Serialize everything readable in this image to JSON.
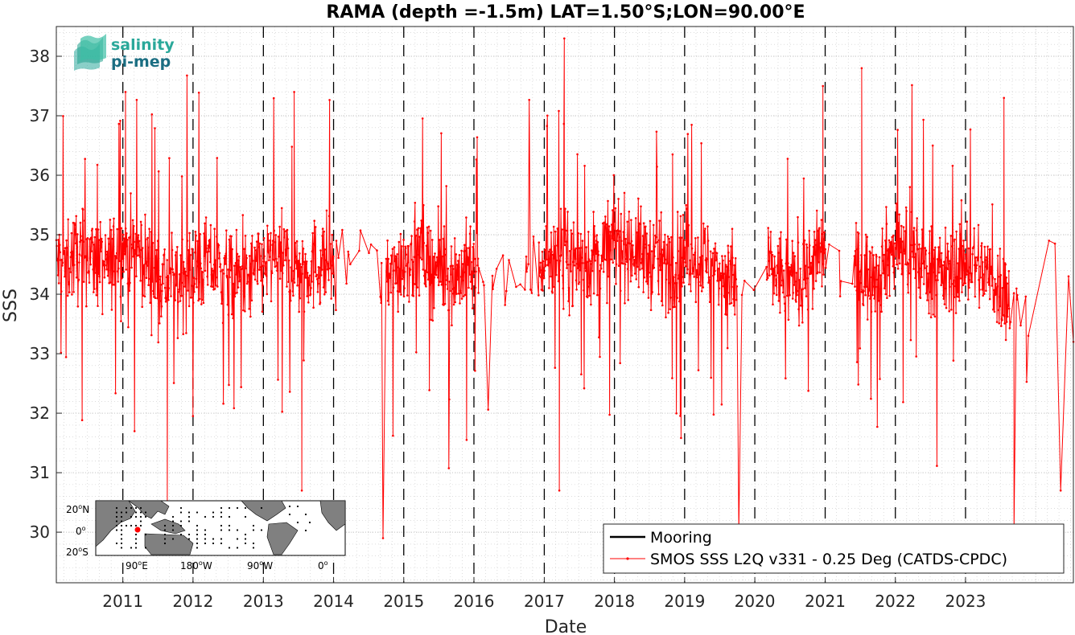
{
  "chart_data": {
    "type": "line",
    "title": "RAMA (depth =-1.5m) LAT=1.50°S;LON=90.00°E",
    "xlabel": "Date",
    "ylabel": "SSS",
    "xlim": [
      "2010-01-20",
      "2024-07-15"
    ],
    "ylim": [
      29.15,
      38.5
    ],
    "x_ticks": [
      "2011",
      "2012",
      "2013",
      "2014",
      "2015",
      "2016",
      "2017",
      "2018",
      "2019",
      "2020",
      "2021",
      "2022",
      "2023"
    ],
    "y_ticks": [
      30,
      31,
      32,
      33,
      34,
      35,
      36,
      37,
      38
    ],
    "grid": true,
    "year_boundaries_dashed": true,
    "legend_position": "bottom-right",
    "series": [
      {
        "name": "Mooring",
        "color": "#000000",
        "values": []
      },
      {
        "name": "SMOS SSS L2Q v331 - 0.25 Deg (CATDS-CPDC)",
        "color": "#ff0000",
        "marker": "dot",
        "envelope_note": "",
        "monthly_mean": [
          [
            "2010-01",
            34.5
          ],
          [
            "2010-04",
            34.6
          ],
          [
            "2010-07",
            34.7
          ],
          [
            "2010-10",
            34.4
          ],
          [
            "2011-01",
            34.8
          ],
          [
            "2011-04",
            34.7
          ],
          [
            "2011-07",
            34.3
          ],
          [
            "2011-10",
            34.2
          ],
          [
            "2012-01",
            34.4
          ],
          [
            "2012-04",
            34.5
          ],
          [
            "2012-07",
            34.3
          ],
          [
            "2012-10",
            34.2
          ],
          [
            "2013-01",
            34.5
          ],
          [
            "2013-04",
            34.6
          ],
          [
            "2013-07",
            34.4
          ],
          [
            "2013-10",
            34.5
          ],
          [
            "2014-01",
            34.6
          ],
          [
            "2014-04",
            34.5
          ],
          [
            "2014-07",
            34.3
          ],
          [
            "2014-10",
            34.2
          ],
          [
            "2015-01",
            34.6
          ],
          [
            "2015-04",
            34.7
          ],
          [
            "2015-07",
            34.4
          ],
          [
            "2015-10",
            34.3
          ],
          [
            "2016-01",
            34.5
          ],
          [
            "2016-04",
            34.4
          ],
          [
            "2016-07",
            34.2
          ],
          [
            "2016-10",
            34.3
          ],
          [
            "2017-01",
            34.6
          ],
          [
            "2017-04",
            34.7
          ],
          [
            "2017-07",
            34.5
          ],
          [
            "2017-10",
            34.6
          ],
          [
            "2018-01",
            34.9
          ],
          [
            "2018-04",
            34.8
          ],
          [
            "2018-07",
            34.6
          ],
          [
            "2018-10",
            34.5
          ],
          [
            "2019-01",
            34.7
          ],
          [
            "2019-04",
            34.6
          ],
          [
            "2019-07",
            34.4
          ],
          [
            "2019-10",
            34.2
          ],
          [
            "2020-01",
            34.5
          ],
          [
            "2020-04",
            34.4
          ],
          [
            "2020-07",
            34.2
          ],
          [
            "2020-10",
            34.4
          ],
          [
            "2021-01",
            34.7
          ],
          [
            "2021-04",
            34.6
          ],
          [
            "2021-07",
            34.3
          ],
          [
            "2021-10",
            34.4
          ],
          [
            "2022-01",
            34.8
          ],
          [
            "2022-04",
            34.7
          ],
          [
            "2022-07",
            34.4
          ],
          [
            "2022-10",
            34.3
          ],
          [
            "2023-01",
            34.6
          ],
          [
            "2023-04",
            34.4
          ],
          [
            "2023-07",
            34.1
          ],
          [
            "2023-10",
            33.8
          ],
          [
            "2024-01",
            34.2
          ],
          [
            "2024-04",
            34.7
          ],
          [
            "2024-07",
            34.2
          ]
        ],
        "notable_points": [
          [
            "2011-01-15",
            37.4
          ],
          [
            "2011-08-20",
            30.4
          ],
          [
            "2013-06-10",
            37.4
          ],
          [
            "2013-07-20",
            30.7
          ],
          [
            "2014-09-15",
            29.9
          ],
          [
            "2017-04-15",
            38.3
          ],
          [
            "2017-03-20",
            30.7
          ],
          [
            "2019-10-10",
            30.0
          ],
          [
            "2020-12-20",
            37.5
          ],
          [
            "2021-07-10",
            37.8
          ],
          [
            "2023-07-20",
            37.3
          ],
          [
            "2023-09-10",
            30.0
          ],
          [
            "2024-05-10",
            30.7
          ],
          [
            "2024-07-15",
            33.2
          ]
        ]
      }
    ]
  },
  "logo": {
    "line1": "salinity",
    "line2": "pi-mep",
    "color1": "#2aa89a",
    "color2": "#1b6e82"
  },
  "inset_map": {
    "lat_labels": [
      "20",
      "0",
      "20"
    ],
    "lat_suffix": [
      "N",
      "",
      "S"
    ],
    "lon_labels": [
      "90",
      "180",
      "90",
      "0"
    ],
    "lon_suffix": [
      "E",
      "W",
      "W",
      ""
    ],
    "degree_symbol": "o",
    "land_color": "#808080",
    "marker_color": "#ff0000"
  }
}
